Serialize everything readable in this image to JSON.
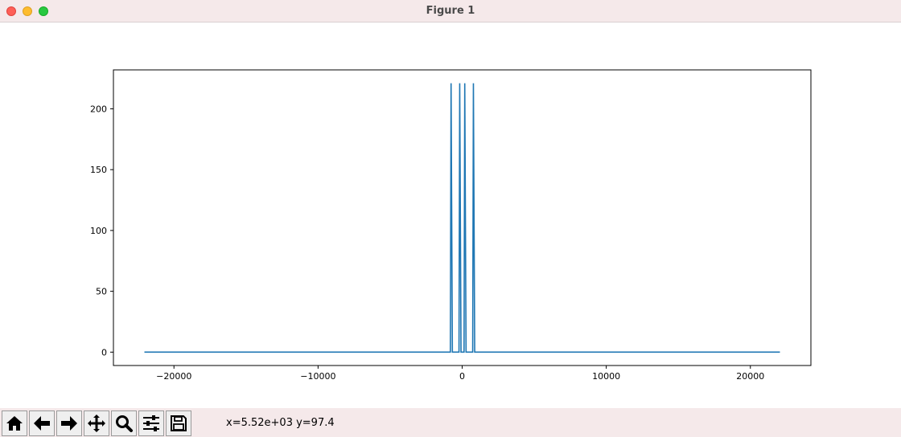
{
  "window": {
    "title": "Figure 1"
  },
  "toolbar": {
    "buttons": [
      {
        "name": "home-button",
        "icon": "home-icon"
      },
      {
        "name": "back-button",
        "icon": "arrow-left-icon"
      },
      {
        "name": "forward-button",
        "icon": "arrow-right-icon"
      },
      {
        "name": "pan-button",
        "icon": "move-icon"
      },
      {
        "name": "zoom-button",
        "icon": "magnifier-icon"
      },
      {
        "name": "configure-subplots-button",
        "icon": "sliders-icon"
      },
      {
        "name": "save-button",
        "icon": "floppy-disk-icon"
      }
    ],
    "coordinates": "x=5.52e+03 y=97.4"
  },
  "chart_data": {
    "type": "line",
    "title": "",
    "xlabel": "",
    "ylabel": "",
    "xlim": [
      -24200,
      24200
    ],
    "ylim": [
      -11,
      232
    ],
    "xticks": [
      -20000,
      -10000,
      0,
      10000,
      20000
    ],
    "xtick_labels": [
      "−20000",
      "−10000",
      "0",
      "10000",
      "20000"
    ],
    "yticks": [
      0,
      50,
      100,
      150,
      200
    ],
    "ytick_labels": [
      "0",
      "50",
      "100",
      "150",
      "200"
    ],
    "grid": false,
    "legend": "none",
    "line_color": "#1f77b4",
    "series": [
      {
        "x": [
          -22050,
          -820,
          -770,
          -680,
          -220,
          -170,
          -80,
          130,
          180,
          270,
          730,
          780,
          870,
          22050
        ],
        "y": [
          0,
          0,
          221,
          0,
          0,
          221,
          0,
          0,
          221,
          0,
          0,
          221,
          0,
          0
        ]
      }
    ]
  }
}
